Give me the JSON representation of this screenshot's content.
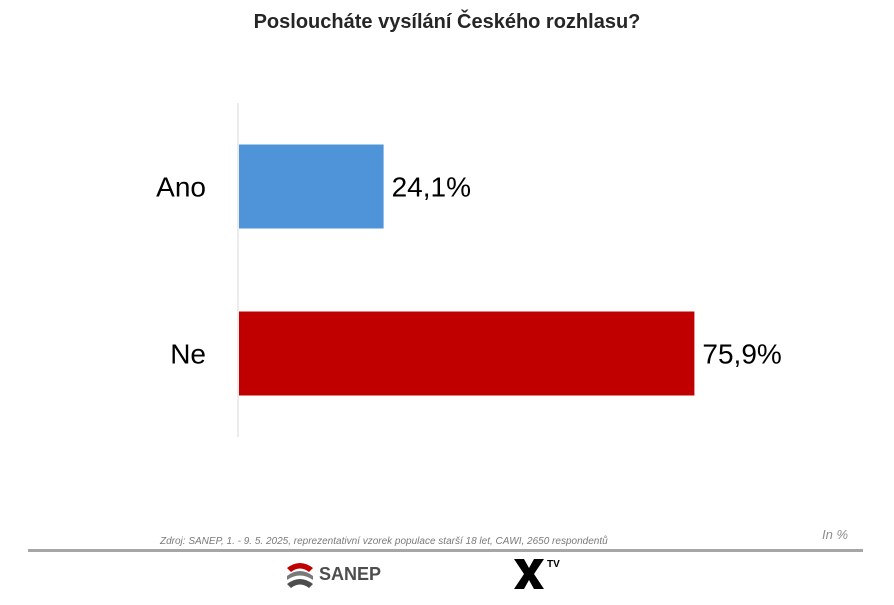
{
  "chart_data": {
    "type": "bar",
    "orientation": "horizontal",
    "title": "Posloucháte vysílání Českého rozhlasu?",
    "categories": [
      "Ano",
      "Ne"
    ],
    "values": [
      24.1,
      75.9
    ],
    "value_labels": [
      "24,1%",
      "75,9%"
    ],
    "colors": [
      "#4f94d9",
      "#c00000"
    ],
    "xlim": [
      0,
      100
    ],
    "grid": false,
    "legend": "none"
  },
  "footer": {
    "source": "Zdroj: SANEP, 1. - 9. 5. 2025, reprezentativní vzorek populace starší 18 let, CAWI, 2650 respondentů",
    "unit": "In %",
    "logo_sanep": "SANEP",
    "logo_xtv": "TV"
  }
}
